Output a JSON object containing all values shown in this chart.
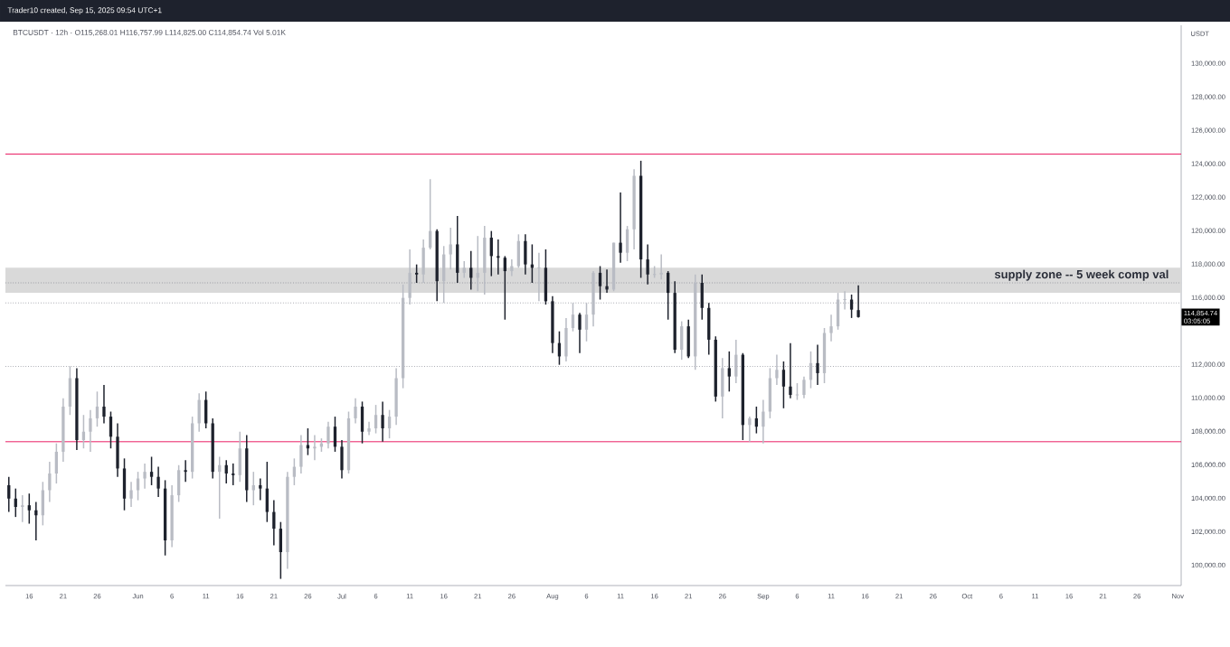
{
  "chart_data": {
    "type": "candlestick",
    "title": "BTCUSDT · 12h · O115,268.01 H116,757.99 L114,825.00 C114,854.74 Vol 5.01K",
    "ylabel": "USDT",
    "annotations": [
      "Trader10 created, Sep 15, 2025 09:54 UTC+1",
      {
        "text": "114,854.74",
        "y": 114854.74
      },
      "03:05:05"
    ],
    "x": [
      "2025-05-13",
      "2025-05-14",
      "2025-05-15",
      "2025-05-16",
      "2025-05-17",
      "2025-05-18",
      "2025-05-19",
      "2025-05-20",
      "2025-05-21",
      "2025-05-22",
      "2025-05-23",
      "2025-05-24",
      "2025-05-25",
      "2025-05-26",
      "2025-05-27",
      "2025-05-28",
      "2025-05-29",
      "2025-05-30",
      "2025-05-31",
      "2025-06-01",
      "2025-06-02",
      "2025-06-03",
      "2025-06-04",
      "2025-06-05",
      "2025-06-06",
      "2025-06-07",
      "2025-06-08",
      "2025-06-09",
      "2025-06-10",
      "2025-06-11",
      "2025-06-12",
      "2025-06-13",
      "2025-06-14",
      "2025-06-15",
      "2025-06-16",
      "2025-06-17",
      "2025-06-18",
      "2025-06-19",
      "2025-06-20",
      "2025-06-21",
      "2025-06-22",
      "2025-06-23",
      "2025-06-24",
      "2025-06-25",
      "2025-06-26",
      "2025-06-27",
      "2025-06-28",
      "2025-06-29",
      "2025-06-30",
      "2025-07-01",
      "2025-07-02",
      "2025-07-03",
      "2025-07-04",
      "2025-07-05",
      "2025-07-06",
      "2025-07-07",
      "2025-07-08",
      "2025-07-09",
      "2025-07-10",
      "2025-07-11",
      "2025-07-12",
      "2025-07-13",
      "2025-07-14",
      "2025-07-15",
      "2025-07-16",
      "2025-07-17",
      "2025-07-18",
      "2025-07-19",
      "2025-07-20",
      "2025-07-21",
      "2025-07-22",
      "2025-07-23",
      "2025-07-24",
      "2025-07-25",
      "2025-07-26",
      "2025-07-27",
      "2025-07-28",
      "2025-07-29",
      "2025-07-30",
      "2025-07-31",
      "2025-08-01",
      "2025-08-02",
      "2025-08-03",
      "2025-08-04",
      "2025-08-05",
      "2025-08-06",
      "2025-08-07",
      "2025-08-08",
      "2025-08-09",
      "2025-08-10",
      "2025-08-11",
      "2025-08-12",
      "2025-08-13",
      "2025-08-14",
      "2025-08-15",
      "2025-08-16",
      "2025-08-17",
      "2025-08-18",
      "2025-08-19",
      "2025-08-20",
      "2025-08-21",
      "2025-08-22",
      "2025-08-23",
      "2025-08-24",
      "2025-08-25",
      "2025-08-26",
      "2025-08-27",
      "2025-08-28",
      "2025-08-29",
      "2025-08-30",
      "2025-08-31",
      "2025-09-01",
      "2025-09-02",
      "2025-09-03",
      "2025-09-04",
      "2025-09-05",
      "2025-09-06",
      "2025-09-07",
      "2025-09-08",
      "2025-09-09",
      "2025-09-10",
      "2025-09-11",
      "2025-09-12",
      "2025-09-13",
      "2025-09-14",
      "2025-09-15"
    ],
    "ohlc": [
      [
        104800,
        105300,
        103200,
        104000
      ],
      [
        104000,
        104600,
        102900,
        103500
      ],
      [
        103500,
        104200,
        102600,
        103600
      ],
      [
        103600,
        104300,
        102500,
        103300
      ],
      [
        103300,
        103800,
        101500,
        103000
      ],
      [
        103000,
        105000,
        102400,
        104500
      ],
      [
        104500,
        106200,
        103800,
        105500
      ],
      [
        105500,
        107300,
        104900,
        106800
      ],
      [
        106800,
        110000,
        106200,
        109500
      ],
      [
        109500,
        111900,
        109000,
        111200
      ],
      [
        111200,
        111800,
        106900,
        107500
      ],
      [
        107500,
        109000,
        107000,
        108000
      ],
      [
        108000,
        109300,
        106800,
        108800
      ],
      [
        108800,
        110400,
        108300,
        109500
      ],
      [
        109500,
        110800,
        108500,
        108900
      ],
      [
        108900,
        109200,
        107000,
        107700
      ],
      [
        107700,
        108500,
        105300,
        105800
      ],
      [
        105800,
        106400,
        103300,
        104000
      ],
      [
        104000,
        105000,
        103500,
        104500
      ],
      [
        104500,
        105600,
        103900,
        105200
      ],
      [
        105200,
        106100,
        104600,
        105600
      ],
      [
        105600,
        106500,
        104800,
        105300
      ],
      [
        105300,
        105900,
        104100,
        104600
      ],
      [
        104600,
        105100,
        100600,
        101500
      ],
      [
        101500,
        104800,
        101100,
        104200
      ],
      [
        104200,
        106000,
        103800,
        105700
      ],
      [
        105700,
        106300,
        105000,
        105600
      ],
      [
        105600,
        108900,
        105200,
        108500
      ],
      [
        108500,
        110300,
        108000,
        109900
      ],
      [
        109900,
        110400,
        108200,
        108500
      ],
      [
        108500,
        108800,
        105200,
        105600
      ],
      [
        105600,
        106500,
        102800,
        106000
      ],
      [
        106000,
        106300,
        104900,
        105500
      ],
      [
        105500,
        106100,
        104800,
        105400
      ],
      [
        105400,
        108000,
        105000,
        107000
      ],
      [
        107000,
        107800,
        103800,
        104500
      ],
      [
        104500,
        105600,
        103600,
        104800
      ],
      [
        104800,
        105200,
        103900,
        104600
      ],
      [
        104600,
        106200,
        102600,
        103200
      ],
      [
        103200,
        103900,
        101200,
        102200
      ],
      [
        102200,
        102600,
        99200,
        100800
      ],
      [
        100800,
        105600,
        99800,
        105300
      ],
      [
        105300,
        106400,
        104800,
        105900
      ],
      [
        105900,
        107800,
        105500,
        107200
      ],
      [
        107200,
        108200,
        106600,
        107000
      ],
      [
        107000,
        107800,
        106300,
        107100
      ],
      [
        107100,
        107600,
        106800,
        107300
      ],
      [
        107300,
        108600,
        107000,
        108300
      ],
      [
        108300,
        108900,
        106800,
        107100
      ],
      [
        107100,
        107500,
        105200,
        105700
      ],
      [
        105700,
        109200,
        105500,
        108800
      ],
      [
        108800,
        110000,
        108500,
        109500
      ],
      [
        109500,
        109800,
        107300,
        108000
      ],
      [
        108000,
        108600,
        107800,
        108200
      ],
      [
        108200,
        109600,
        107900,
        109000
      ],
      [
        109000,
        109800,
        107400,
        108200
      ],
      [
        108200,
        109300,
        107600,
        108900
      ],
      [
        108900,
        111800,
        108400,
        111200
      ],
      [
        111200,
        116800,
        110600,
        116000
      ],
      [
        116000,
        118900,
        115600,
        117500
      ],
      [
        117500,
        118000,
        116900,
        117400
      ],
      [
        117400,
        119500,
        116900,
        119000
      ],
      [
        119000,
        123100,
        118900,
        120000
      ],
      [
        120000,
        120100,
        115800,
        117000
      ],
      [
        117000,
        119100,
        115700,
        118600
      ],
      [
        118600,
        120200,
        117700,
        119200
      ],
      [
        119200,
        120900,
        116900,
        117500
      ],
      [
        117500,
        118200,
        117200,
        117800
      ],
      [
        117800,
        118800,
        116500,
        117200
      ],
      [
        117200,
        119700,
        116400,
        117500
      ],
      [
        117500,
        120300,
        116200,
        119600
      ],
      [
        119600,
        120000,
        117300,
        118500
      ],
      [
        118500,
        119500,
        117400,
        118400
      ],
      [
        118400,
        118500,
        114700,
        117600
      ],
      [
        117600,
        118300,
        117300,
        117900
      ],
      [
        117900,
        119800,
        117800,
        119400
      ],
      [
        119400,
        119800,
        117400,
        118000
      ],
      [
        118000,
        119200,
        116900,
        117800
      ],
      [
        117800,
        118700,
        115800,
        117800
      ],
      [
        117800,
        118900,
        115600,
        115800
      ],
      [
        115800,
        116100,
        112700,
        113300
      ],
      [
        113300,
        114000,
        112000,
        112500
      ],
      [
        112500,
        114800,
        112200,
        114200
      ],
      [
        114200,
        115700,
        114000,
        115000
      ],
      [
        115000,
        115100,
        112700,
        114100
      ],
      [
        114100,
        115700,
        113400,
        115000
      ],
      [
        115000,
        117600,
        114300,
        117500
      ],
      [
        117500,
        117900,
        115900,
        116700
      ],
      [
        116700,
        117700,
        116300,
        116500
      ],
      [
        116500,
        119300,
        116400,
        119300
      ],
      [
        119300,
        122300,
        118100,
        118700
      ],
      [
        118700,
        120300,
        118200,
        120100
      ],
      [
        120100,
        123700,
        118900,
        123300
      ],
      [
        123300,
        124200,
        117200,
        118300
      ],
      [
        118300,
        119200,
        116800,
        117400
      ],
      [
        117400,
        117900,
        117200,
        117400
      ],
      [
        117400,
        118600,
        117100,
        117500
      ],
      [
        117500,
        117600,
        114700,
        116300
      ],
      [
        116300,
        117000,
        112700,
        112900
      ],
      [
        112900,
        114600,
        112300,
        114300
      ],
      [
        114300,
        114700,
        112400,
        112500
      ],
      [
        112500,
        117400,
        111700,
        116900
      ],
      [
        116900,
        117400,
        114700,
        115400
      ],
      [
        115400,
        115700,
        112600,
        113500
      ],
      [
        113500,
        113700,
        109800,
        110100
      ],
      [
        110100,
        112400,
        108800,
        111800
      ],
      [
        111800,
        112800,
        110400,
        111300
      ],
      [
        111300,
        113500,
        110900,
        112600
      ],
      [
        112600,
        112700,
        107500,
        108400
      ],
      [
        108400,
        108900,
        107400,
        108800
      ],
      [
        108800,
        109500,
        107900,
        108300
      ],
      [
        108300,
        109900,
        107300,
        109200
      ],
      [
        109200,
        111800,
        108800,
        111200
      ],
      [
        111200,
        112600,
        110800,
        111700
      ],
      [
        111700,
        112200,
        109400,
        110700
      ],
      [
        110700,
        113300,
        110000,
        110200
      ],
      [
        110200,
        110900,
        109900,
        110200
      ],
      [
        110200,
        111300,
        110000,
        111100
      ],
      [
        111100,
        112800,
        110600,
        112100
      ],
      [
        112100,
        113200,
        110800,
        111500
      ],
      [
        111500,
        114200,
        110900,
        113900
      ],
      [
        113900,
        115000,
        113400,
        114300
      ],
      [
        114300,
        116300,
        114100,
        115900
      ],
      [
        115900,
        116400,
        115300,
        115900
      ],
      [
        115900,
        116200,
        114800,
        115300
      ],
      [
        115268.01,
        116757.99,
        114825.0,
        114854.74
      ]
    ],
    "xlim": [
      "2025-05-12T12:00",
      "2025-11-01T12:00"
    ],
    "xticks": [
      {
        "value": "2025-05-16",
        "label": "16"
      },
      {
        "value": "2025-05-21",
        "label": "21"
      },
      {
        "value": "2025-05-26",
        "label": "26"
      },
      {
        "value": "2025-06-01",
        "label": "Jun"
      },
      {
        "value": "2025-06-06",
        "label": "6"
      },
      {
        "value": "2025-06-11",
        "label": "11"
      },
      {
        "value": "2025-06-16",
        "label": "16"
      },
      {
        "value": "2025-06-21",
        "label": "21"
      },
      {
        "value": "2025-06-26",
        "label": "26"
      },
      {
        "value": "2025-07-01",
        "label": "Jul"
      },
      {
        "value": "2025-07-06",
        "label": "6"
      },
      {
        "value": "2025-07-11",
        "label": "11"
      },
      {
        "value": "2025-07-16",
        "label": "16"
      },
      {
        "value": "2025-07-21",
        "label": "21"
      },
      {
        "value": "2025-07-26",
        "label": "26"
      },
      {
        "value": "2025-08-01",
        "label": "Aug"
      },
      {
        "value": "2025-08-06",
        "label": "6"
      },
      {
        "value": "2025-08-11",
        "label": "11"
      },
      {
        "value": "2025-08-16",
        "label": "16"
      },
      {
        "value": "2025-08-21",
        "label": "21"
      },
      {
        "value": "2025-08-26",
        "label": "26"
      },
      {
        "value": "2025-09-01",
        "label": "Sep"
      },
      {
        "value": "2025-09-06",
        "label": "6"
      },
      {
        "value": "2025-09-11",
        "label": "11"
      },
      {
        "value": "2025-09-16",
        "label": "16"
      },
      {
        "value": "2025-09-21",
        "label": "21"
      },
      {
        "value": "2025-09-26",
        "label": "26"
      },
      {
        "value": "2025-10-01",
        "label": "Oct"
      },
      {
        "value": "2025-10-06",
        "label": "6"
      },
      {
        "value": "2025-10-11",
        "label": "11"
      },
      {
        "value": "2025-10-16",
        "label": "16"
      },
      {
        "value": "2025-10-21",
        "label": "21"
      },
      {
        "value": "2025-10-26",
        "label": "26"
      },
      {
        "value": "2025-11-01",
        "label": "Nov"
      }
    ],
    "ylim": [
      98800,
      132300
    ],
    "yticks": [
      {
        "value": 100000,
        "label": "100,000.00"
      },
      {
        "value": 102000,
        "label": "102,000.00"
      },
      {
        "value": 104000,
        "label": "104,000.00"
      },
      {
        "value": 106000,
        "label": "106,000.00"
      },
      {
        "value": 108000,
        "label": "108,000.00"
      },
      {
        "value": 110000,
        "label": "110,000.00"
      },
      {
        "value": 112000,
        "label": "112,000.00"
      },
      {
        "value": 116000,
        "label": "116,000.00"
      },
      {
        "value": 118000,
        "label": "118,000.00"
      },
      {
        "value": 120000,
        "label": "120,000.00"
      },
      {
        "value": 122000,
        "label": "122,000.00"
      },
      {
        "value": 124000,
        "label": "124,000.00"
      },
      {
        "value": 126000,
        "label": "126,000.00"
      },
      {
        "value": 128000,
        "label": "128,000.00"
      },
      {
        "value": 130000,
        "label": "130,000.00"
      }
    ],
    "ref_lines": [
      {
        "axis": "y",
        "value": 124600,
        "color": "#e91e63"
      },
      {
        "axis": "y",
        "value": 107400,
        "color": "#e91e63"
      },
      {
        "axis": "y",
        "value": 111900,
        "color": "#787b86",
        "line_style": "dotted"
      },
      {
        "axis": "y",
        "value": 115700,
        "color": "#787b86",
        "line_style": "dotted"
      },
      {
        "axis": "y",
        "value": 116900,
        "color": "#787b86",
        "line_style": "dotted"
      }
    ],
    "bands": [
      {
        "axis": "y",
        "from": 116300,
        "to": 117800,
        "label": "supply zone -- 5 week comp val",
        "color": "#d9d9d9"
      }
    ]
  }
}
